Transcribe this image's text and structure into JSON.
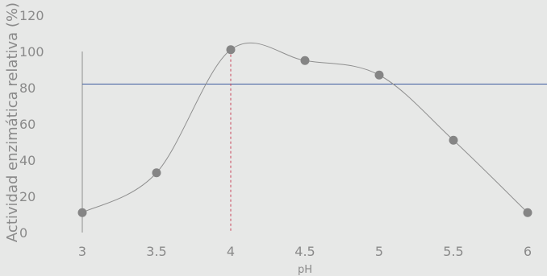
{
  "chart_data": {
    "type": "line",
    "x": [
      3,
      3.5,
      4,
      4.5,
      5,
      5.5,
      6
    ],
    "x_tick_labels": [
      "3",
      "3.5",
      "4",
      "4.5",
      "5",
      "5.5",
      "6"
    ],
    "series": [
      {
        "values": [
          11,
          33,
          101,
          95,
          87,
          51,
          11
        ]
      }
    ],
    "reference_line": {
      "y": 82,
      "color": "#3d5a9e"
    },
    "marker_drop_line": {
      "x": 4,
      "y": 101,
      "color": "#c9465b"
    },
    "xlabel": "pH",
    "ylabel": "Actividad enzimática relativa (%)",
    "y_ticks": [
      0,
      20,
      40,
      60,
      80,
      100,
      120
    ],
    "xlim": [
      3,
      6
    ],
    "ylim": [
      0,
      120
    ],
    "grid": false,
    "colors": {
      "background": "#e7e8e7",
      "line": "#8f8f8f",
      "markers": "#858585",
      "axis_text": "#8a8a8a",
      "axis_line": "#8f8f8f"
    }
  }
}
